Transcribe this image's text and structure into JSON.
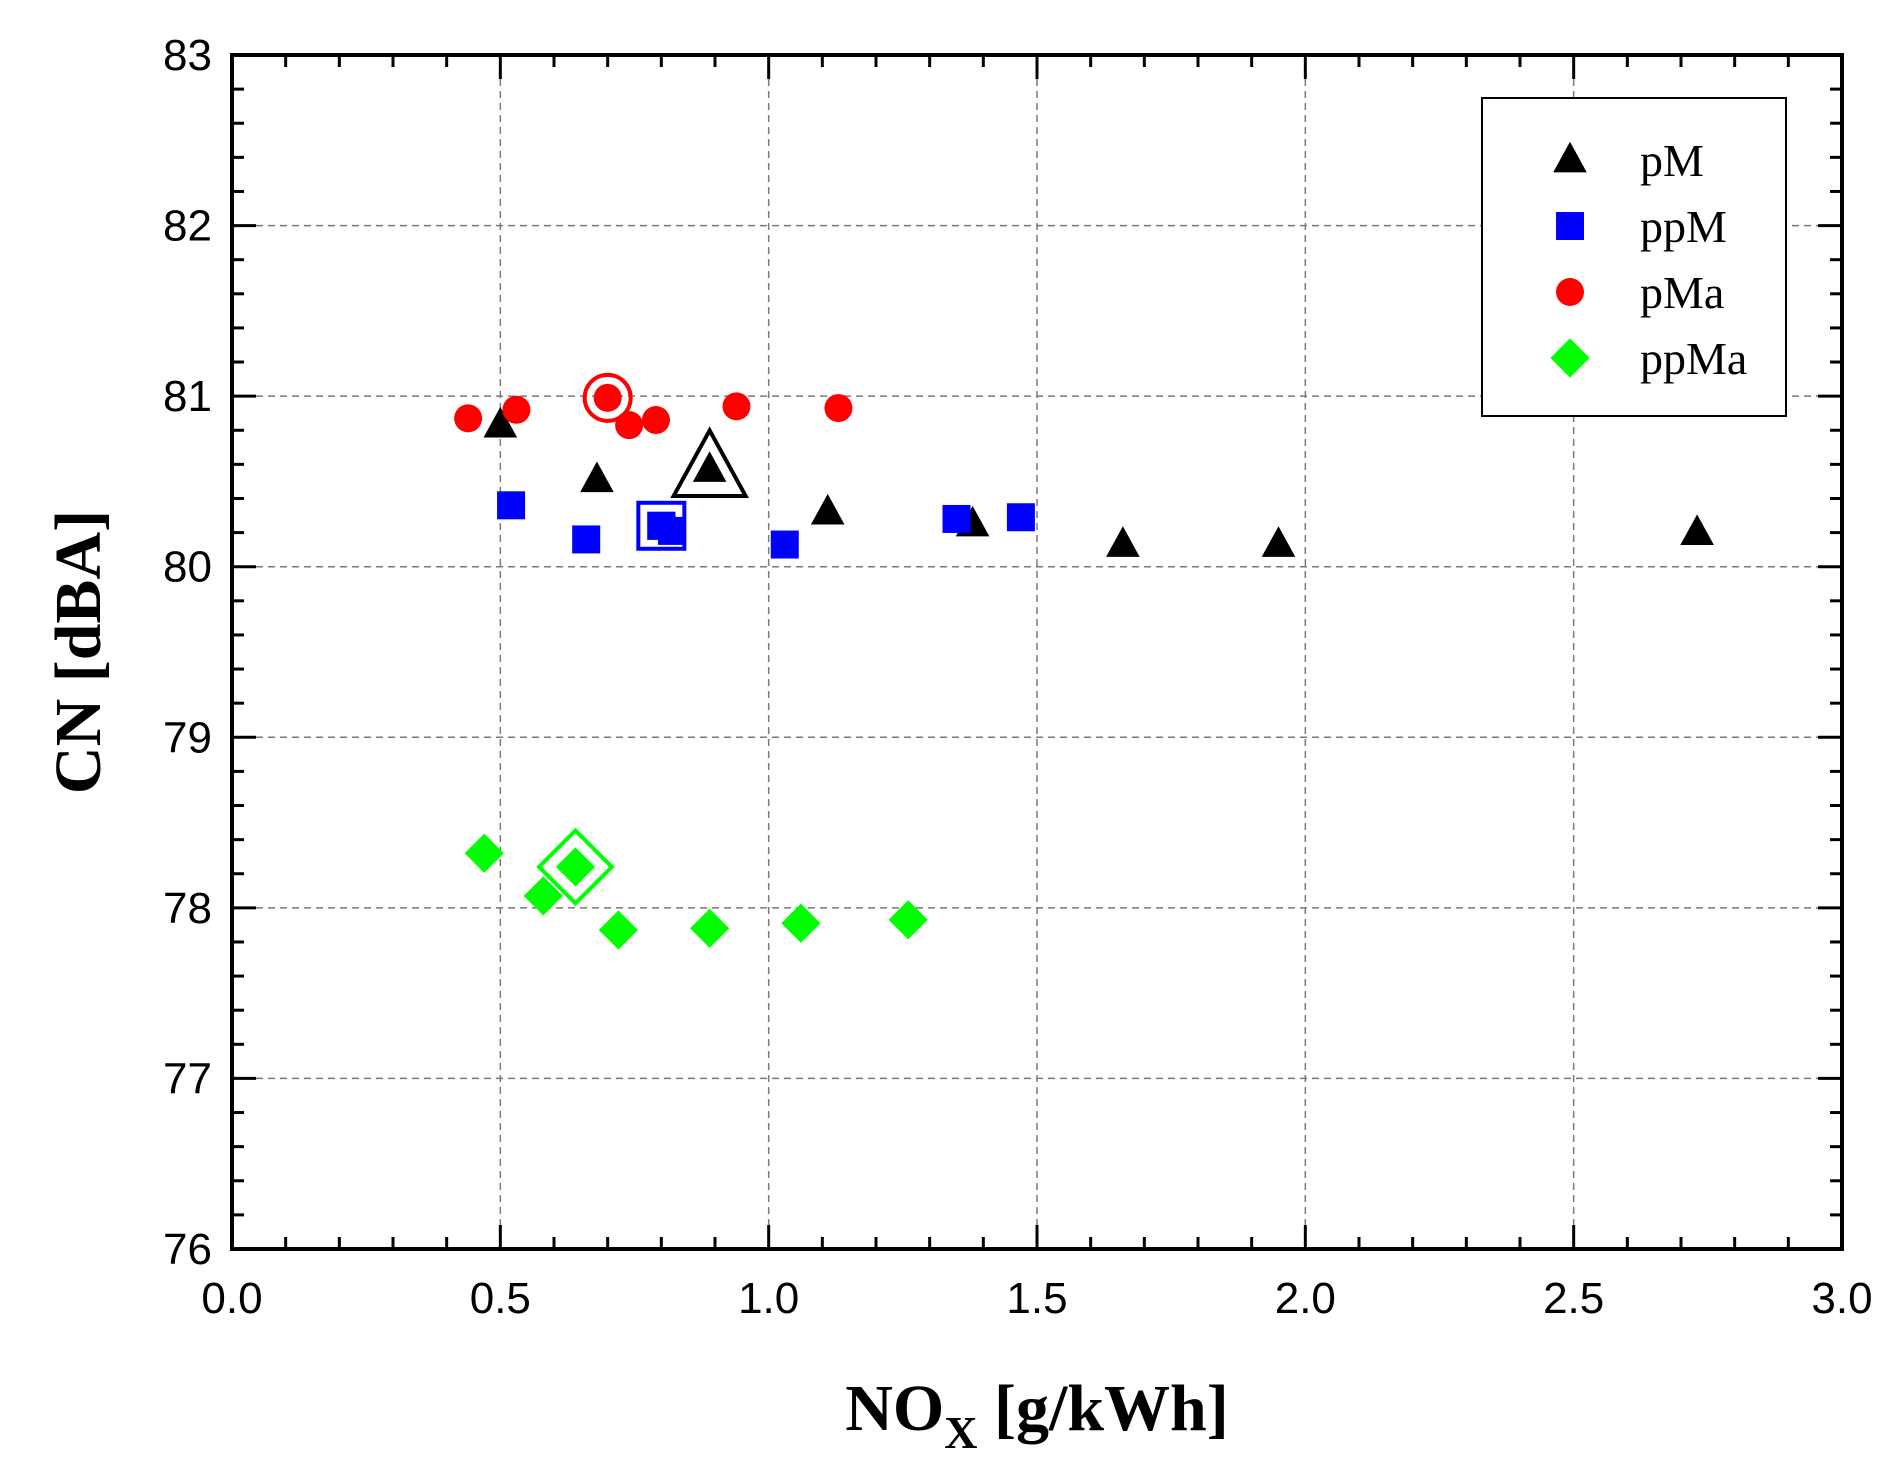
{
  "chart_data": {
    "type": "scatter",
    "title": "",
    "xlabel": "NO",
    "xlabel_sub": "X",
    "xlabel_unit": " [g/kWh]",
    "ylabel": "CN [dBA]",
    "xlim": [
      0.0,
      3.0
    ],
    "ylim": [
      76,
      83
    ],
    "xticks": [
      "0.0",
      "0.5",
      "1.0",
      "1.5",
      "2.0",
      "2.5",
      "3.0"
    ],
    "yticks": [
      "76",
      "77",
      "78",
      "79",
      "80",
      "81",
      "82",
      "83"
    ],
    "grid": true,
    "legend_position": "top-right",
    "series": [
      {
        "name": "pM",
        "marker": "triangle",
        "color": "#000000",
        "x": [
          0.5,
          0.68,
          1.11,
          1.38,
          1.66,
          1.95,
          2.73
        ],
        "y": [
          80.83,
          80.51,
          80.32,
          80.25,
          80.13,
          80.13,
          80.2
        ],
        "highlight": {
          "x": 0.89,
          "y": 80.57
        }
      },
      {
        "name": "ppM",
        "marker": "square",
        "color": "#0000ff",
        "x": [
          0.52,
          0.66,
          0.8,
          0.82,
          1.03,
          1.35,
          1.47
        ],
        "y": [
          80.36,
          80.16,
          80.24,
          80.21,
          80.13,
          80.28,
          80.29
        ],
        "highlight": {
          "x": 0.8,
          "y": 80.24
        }
      },
      {
        "name": "pMa",
        "marker": "circle",
        "color": "#ff0000",
        "x": [
          0.44,
          0.53,
          0.74,
          0.79,
          0.94,
          1.13
        ],
        "y": [
          80.87,
          80.92,
          80.83,
          80.86,
          80.94,
          80.93
        ],
        "highlight": {
          "x": 0.7,
          "y": 80.99
        }
      },
      {
        "name": "ppMa",
        "marker": "diamond",
        "color": "#00ff00",
        "x": [
          0.47,
          0.58,
          0.72,
          0.89,
          1.06,
          1.26
        ],
        "y": [
          78.32,
          78.07,
          77.87,
          77.88,
          77.91,
          77.93
        ],
        "highlight": {
          "x": 0.64,
          "y": 78.24
        }
      }
    ]
  }
}
